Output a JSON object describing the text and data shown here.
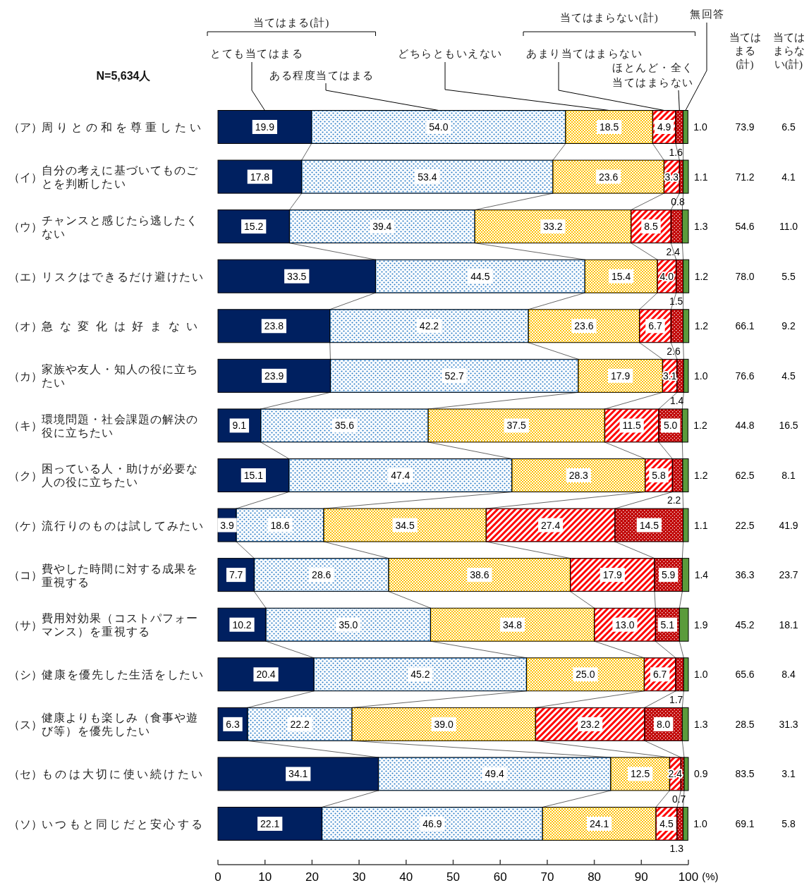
{
  "chart_data": [
    {
      "type": "bar",
      "orientation": "horizontal",
      "stacked": true,
      "legend": "top",
      "annotations": [
        "N=5,634人",
        "当てはまる(計)",
        "当てはまらない(計)"
      ],
      "categories": [
        "（ア）周りとの和を尊重したい",
        "（イ）自分の考えに基づいてものごとを判断したい",
        "（ウ）チャンスと感じたら逃したくない",
        "（エ）リスクはできるだけ避けたい",
        "（オ）急な変化は好まない",
        "（カ）家族や友人・知人の役に立ちたい",
        "（キ）環境問題・社会課題の解決の役に立ちたい",
        "（ク）困っている人・助けが必要な人の役に立ちたい",
        "（ケ）流行りのものは試してみたい",
        "（コ）費やした時間に対する成果を重視する",
        "（サ）費用対効果（コストパフォーマンス）を重視する",
        "（シ）健康を優先した生活をしたい",
        "（ス）健康よりも楽しみ（食事や遊び等）を優先したい",
        "（セ）ものは大切に使い続けたい",
        "（ソ）いつもと同じだと安心する"
      ],
      "series": [
        {
          "name": "とても当てはまる",
          "color": "#002060",
          "values": [
            19.9,
            17.8,
            15.2,
            33.5,
            23.8,
            23.9,
            9.1,
            15.1,
            3.9,
            7.7,
            10.2,
            20.4,
            6.3,
            34.1,
            22.1
          ],
          "value_labels": [
            "19.9",
            "17.8",
            "15.2",
            "33.5",
            "23.8",
            "23.9",
            "9.1",
            "15.1",
            "3.9",
            "7.7",
            "10.2",
            "20.4",
            "6.3",
            "34.1",
            "22.1"
          ]
        },
        {
          "name": "ある程度当てはまる",
          "color": "#2f7fc8",
          "values": [
            54.0,
            53.4,
            39.4,
            44.5,
            42.2,
            52.7,
            35.6,
            47.4,
            18.6,
            28.6,
            35.0,
            45.2,
            22.2,
            49.4,
            46.9
          ],
          "value_labels": [
            "54.0",
            "53.4",
            "39.4",
            "44.5",
            "42.2",
            "52.7",
            "35.6",
            "47.4",
            "18.6",
            "28.6",
            "35.0",
            "45.2",
            "22.2",
            "49.4",
            "46.9"
          ]
        },
        {
          "name": "どちらともいえない",
          "color": "#ffc000",
          "values": [
            18.5,
            23.6,
            33.2,
            15.4,
            23.6,
            17.9,
            37.5,
            28.3,
            34.5,
            38.6,
            34.8,
            25.0,
            39.0,
            12.5,
            24.1
          ],
          "value_labels": [
            "18.5",
            "23.6",
            "33.2",
            "15.4",
            "23.6",
            "17.9",
            "37.5",
            "28.3",
            "34.5",
            "38.6",
            "34.8",
            "25.0",
            "39.0",
            "12.5",
            "24.1"
          ]
        },
        {
          "name": "あまり当てはまらない",
          "color": "#ff0000",
          "values": [
            4.9,
            3.3,
            8.5,
            4.0,
            6.7,
            3.1,
            11.5,
            5.8,
            27.4,
            17.9,
            13.0,
            6.7,
            23.2,
            2.4,
            4.5
          ],
          "value_labels": [
            "4.9",
            "3.3",
            "8.5",
            "4.0",
            "6.7",
            "3.1",
            "11.5",
            "5.8",
            "27.4",
            "17.9",
            "13.0",
            "6.7",
            "23.2",
            "2.4",
            "4.5"
          ]
        },
        {
          "name": "ほとんど・全く当てはまらない",
          "color": "#c00000",
          "values": [
            1.6,
            0.8,
            2.4,
            1.5,
            2.6,
            1.4,
            5.0,
            2.2,
            14.5,
            5.9,
            5.1,
            1.7,
            8.0,
            0.7,
            1.3
          ],
          "value_labels": [
            "1.6",
            "0.8",
            "2.4",
            "1.5",
            "2.6",
            "1.4",
            "5.0",
            "2.2",
            "14.5",
            "5.9",
            "5.1",
            "1.7",
            "8.0",
            "0.7",
            "1.3"
          ]
        },
        {
          "name": "無回答",
          "color": "#5b9b3b",
          "values": [
            1.0,
            1.1,
            1.3,
            1.2,
            1.2,
            1.0,
            1.2,
            1.2,
            1.1,
            1.4,
            1.9,
            1.0,
            1.3,
            0.9,
            1.0
          ],
          "value_labels": [
            "1.0",
            "1.1",
            "1.3",
            "1.2",
            "1.2",
            "1.0",
            "1.2",
            "1.2",
            "1.1",
            "1.4",
            "1.9",
            "1.0",
            "1.3",
            "0.9",
            "1.0"
          ]
        }
      ],
      "xlim": [
        0,
        100
      ],
      "xticks": [
        0,
        10,
        20,
        30,
        40,
        50,
        60,
        70,
        80,
        90,
        100
      ],
      "xlabel": "(%)"
    },
    {
      "type": "other",
      "title": "当てはまる(計)",
      "annotations": [
        "73.9",
        "71.2",
        "54.6",
        "78.0",
        "66.1",
        "76.6",
        "44.8",
        "62.5",
        "22.5",
        "36.3",
        "45.2",
        "65.6",
        "28.5",
        "83.5",
        "69.1"
      ]
    },
    {
      "type": "other",
      "title": "当てはまらない(計)",
      "annotations": [
        "6.5",
        "4.1",
        "11.0",
        "5.5",
        "9.2",
        "4.5",
        "16.5",
        "8.1",
        "41.9",
        "23.7",
        "18.1",
        "8.4",
        "31.3",
        "3.1",
        "5.8"
      ]
    }
  ]
}
